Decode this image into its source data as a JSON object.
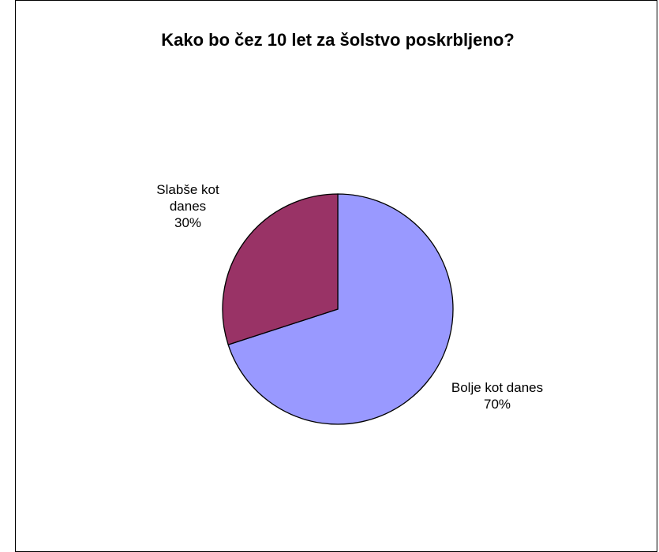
{
  "chart_data": {
    "type": "pie",
    "title": "Kako bo čez 10 let za šolstvo poskrbljeno?",
    "slices": [
      {
        "label_lines": [
          "Bolje kot danes"
        ],
        "value": 70,
        "percent_label": "70%",
        "color": "#9999FF"
      },
      {
        "label_lines": [
          "Slabše kot",
          "danes"
        ],
        "value": 30,
        "percent_label": "30%",
        "color": "#993366"
      }
    ],
    "start_angle": "12 o'clock",
    "direction": "clockwise",
    "legend": "none",
    "border_color": "#000000"
  }
}
